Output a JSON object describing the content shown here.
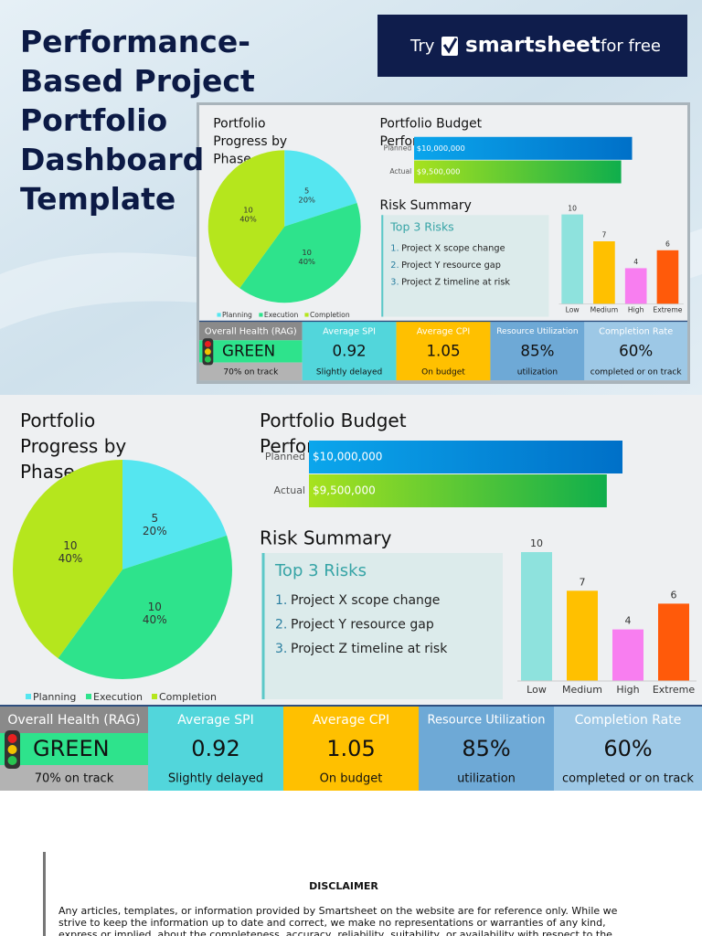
{
  "header": {
    "title": "Performance-Based Project Portfolio Dashboard Template",
    "cta": {
      "try": "Try",
      "brand": "smartsheet",
      "tail": "for free"
    }
  },
  "chart_data": [
    {
      "type": "pie",
      "title": "Portfolio Progress by Phase",
      "categories": [
        "Planning",
        "Execution",
        "Completion"
      ],
      "values": [
        5,
        10,
        10
      ],
      "percent_labels": [
        "20%",
        "40%",
        "40%"
      ],
      "colors": [
        "#55e6f0",
        "#2ee38c",
        "#b5e61d"
      ],
      "legend": "bottom"
    },
    {
      "type": "bar",
      "orientation": "horizontal",
      "title": "Portfolio Budget Performance",
      "categories": [
        "Planned",
        "Actual"
      ],
      "values": [
        10000000,
        9500000
      ],
      "value_labels": [
        "$10,000,000",
        "$9,500,000"
      ],
      "xlim": [
        0,
        10000000
      ],
      "colors": [
        [
          "#0ba6ec",
          "#0070c8"
        ],
        [
          "#a8e21e",
          "#0fae4c"
        ]
      ]
    },
    {
      "type": "bar",
      "categories": [
        "Low",
        "Medium",
        "High",
        "Extreme"
      ],
      "values": [
        10,
        7,
        4,
        6
      ],
      "ylim": [
        0,
        10
      ],
      "colors": [
        "#8ee2dd",
        "#ffc000",
        "#f87ef0",
        "#ff5a0a"
      ]
    }
  ],
  "risks": {
    "section": "Risk Summary",
    "title": "Top 3 Risks",
    "items": [
      {
        "marker": "1.",
        "text": "Project X scope change"
      },
      {
        "marker": "2.",
        "text": "Project Y resource gap"
      },
      {
        "marker": "3.",
        "text": "Project Z timeline at risk"
      }
    ]
  },
  "kpis": [
    {
      "title": "Overall Health (RAG)",
      "value": "GREEN",
      "note": "70% on track",
      "color": "#2ee38c"
    },
    {
      "title": "Average SPI",
      "value": "0.92",
      "note": "Slightly delayed",
      "color": "#52d6db"
    },
    {
      "title": "Average CPI",
      "value": "1.05",
      "note": "On budget",
      "color": "#ffc000"
    },
    {
      "title": "Resource Utilization",
      "value": "85%",
      "note": "utilization",
      "color": "#6ea9d6"
    },
    {
      "title": "Completion Rate",
      "value": "60%",
      "note": "completed or on track",
      "color": "#9dc8e6"
    }
  ],
  "disclaimer": {
    "title": "DISCLAIMER",
    "text": "Any articles, templates, or information provided by Smartsheet on the website are for reference only. While we strive to keep the information up to date and correct, we make no representations or warranties of any kind, express or implied, about the completeness, accuracy, reliability, suitability, or availability with respect to the"
  }
}
